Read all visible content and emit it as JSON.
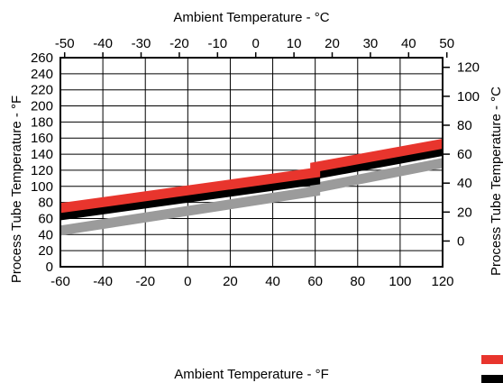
{
  "chart_data": {
    "type": "line",
    "title": "",
    "xlabel_bottom": "Ambient Temperature - °F",
    "xlabel_top": "Ambient Temperature - °C",
    "ylabel_left": "Process Tube Temperature - °F",
    "ylabel_right": "Process Tube Temperature - °C",
    "xlim": [
      -60,
      120
    ],
    "ylim": [
      0,
      260
    ],
    "x_ticks": [
      -60,
      -40,
      -20,
      0,
      20,
      40,
      60,
      80,
      100,
      120
    ],
    "y_ticks": [
      0,
      20,
      40,
      60,
      80,
      100,
      120,
      140,
      160,
      180,
      200,
      220,
      240,
      260
    ],
    "top_ticks_c": [
      -50,
      -40,
      -30,
      -20,
      -10,
      0,
      10,
      20,
      30,
      40,
      50
    ],
    "right_ticks_c": [
      0,
      20,
      40,
      60,
      80,
      100,
      120
    ],
    "grid": true,
    "series": [
      {
        "color": "#9b9b9b",
        "x": [
          -60,
          60,
          60,
          120
        ],
        "y": [
          45,
          94,
          98,
          129
        ]
      },
      {
        "color": "#000000",
        "x": [
          -60,
          60,
          60,
          120
        ],
        "y": [
          64,
          108,
          115,
          144
        ]
      },
      {
        "color": "#e8352d",
        "x": [
          -60,
          60,
          60,
          120
        ],
        "y": [
          73,
          117,
          124,
          153
        ]
      }
    ],
    "legend_swatches": [
      "#e8352d",
      "#000000"
    ]
  }
}
